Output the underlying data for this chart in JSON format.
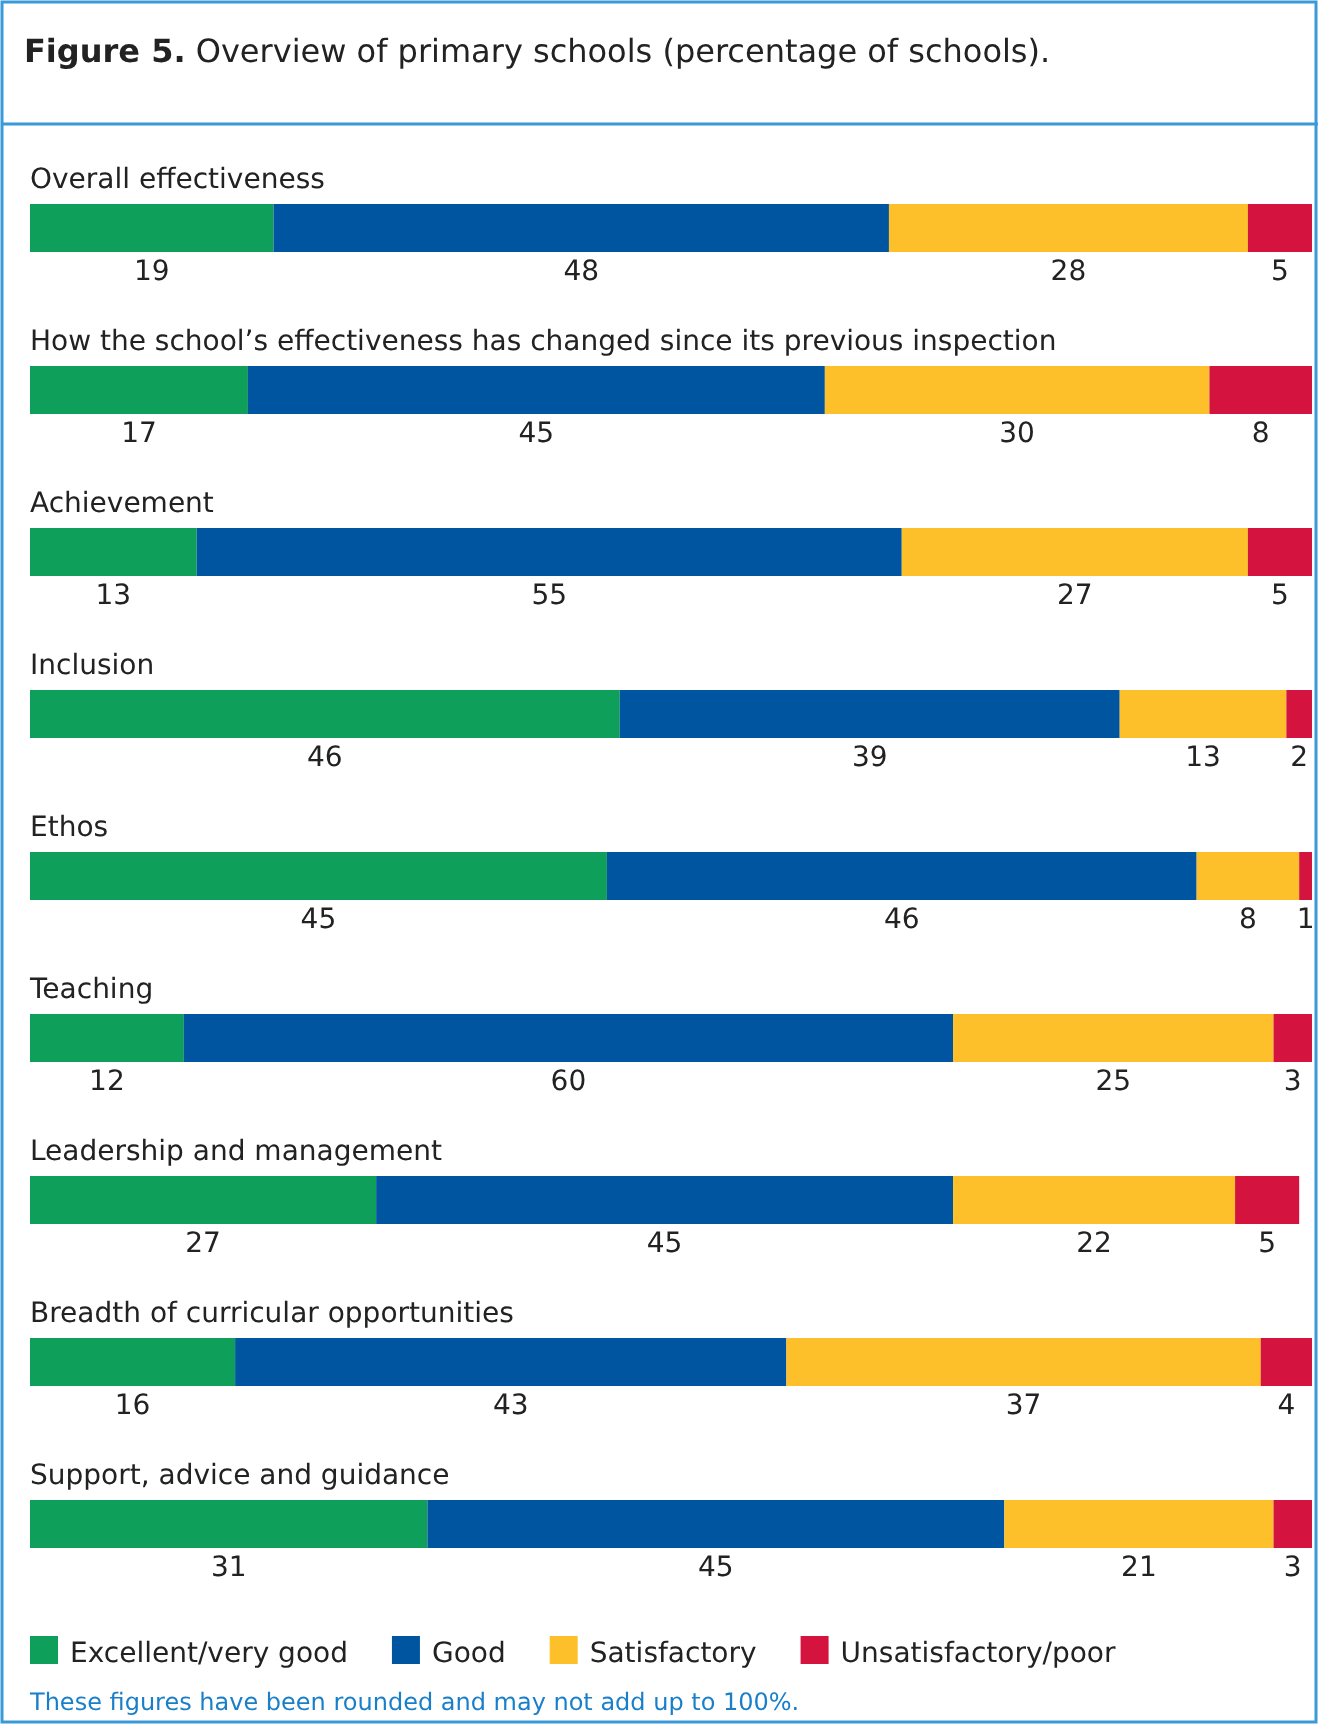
{
  "chart_data": {
    "type": "bar",
    "orientation": "horizontal",
    "stacked": true,
    "title": "Figure 5. Overview of primary schools (percentage of schools).",
    "categories": [
      "Overall effectiveness",
      "How the school’s effectiveness has changed since its previous inspection",
      "Achievement",
      "Inclusion",
      "Ethos",
      "Teaching",
      "Leadership and management",
      "Breadth of curricular opportunities",
      "Support, advice and guidance"
    ],
    "series": [
      {
        "name": "Excellent/very good",
        "color": "#0e9f5a",
        "values": [
          19,
          17,
          13,
          46,
          45,
          12,
          27,
          16,
          31
        ]
      },
      {
        "name": "Good",
        "color": "#0055a0",
        "values": [
          48,
          45,
          55,
          39,
          46,
          60,
          45,
          43,
          45
        ]
      },
      {
        "name": "Satisfactory",
        "color": "#fdc02a",
        "values": [
          28,
          30,
          27,
          13,
          8,
          25,
          22,
          37,
          21
        ]
      },
      {
        "name": "Unsatisfactory/poor",
        "color": "#d5133f",
        "values": [
          5,
          8,
          5,
          2,
          1,
          3,
          5,
          4,
          3
        ]
      }
    ],
    "xlim": [
      0,
      100
    ],
    "tick_labels": "y",
    "data_labels": true,
    "legend": "bottom",
    "annotations": [
      "These figures have been rounded and may not add up to 100%."
    ]
  }
}
